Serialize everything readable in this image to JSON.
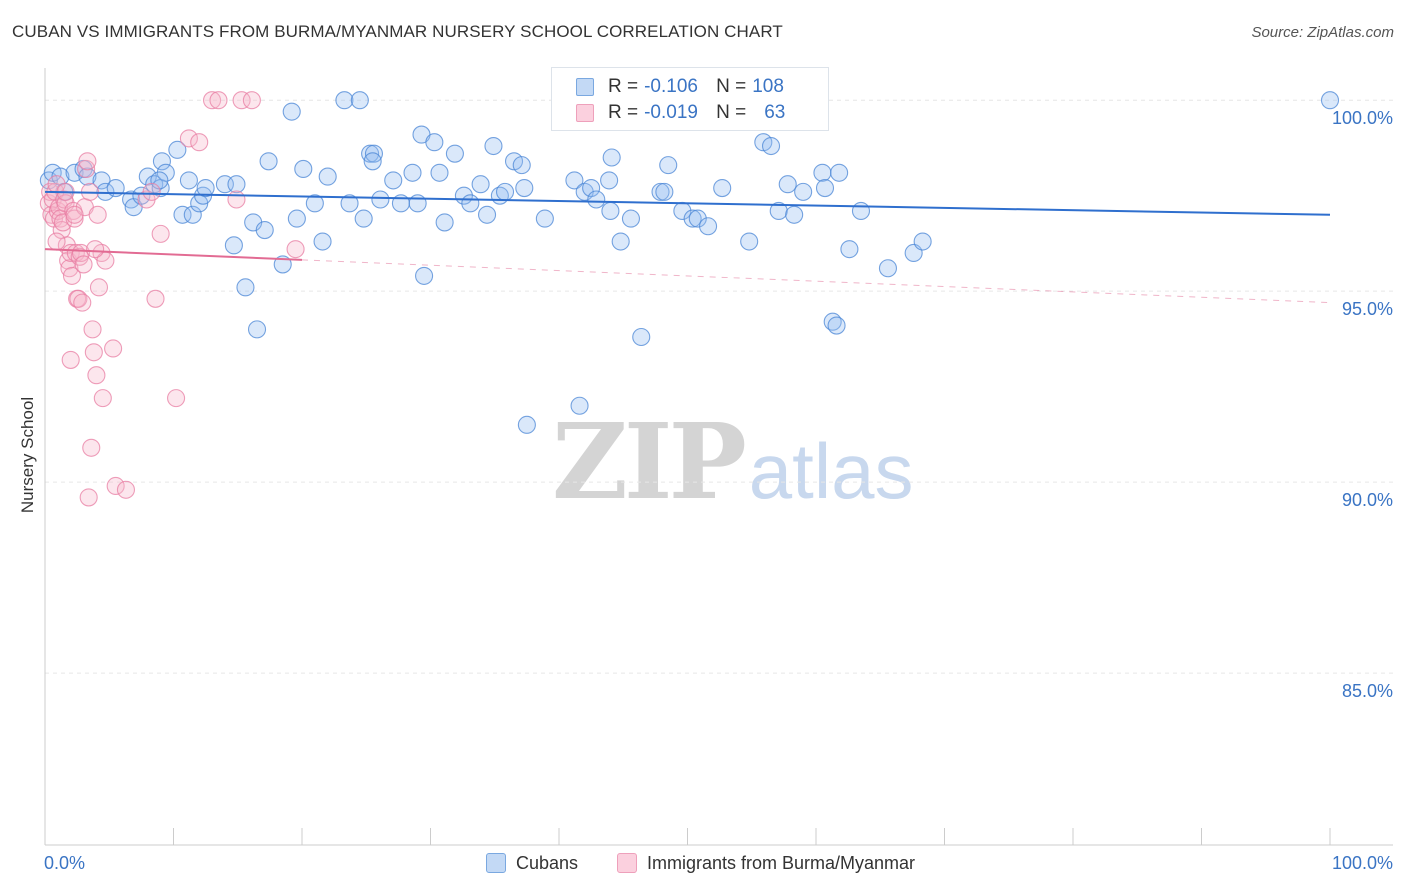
{
  "header": {
    "title": "CUBAN VS IMMIGRANTS FROM BURMA/MYANMAR NURSERY SCHOOL CORRELATION CHART",
    "source": "Source: ZipAtlas.com"
  },
  "watermark": {
    "zip": "ZIP",
    "atlas": "atlas"
  },
  "legend_box": {
    "rows": [
      {
        "r_label": "R =",
        "r_value": "-0.106",
        "n_label": "N =",
        "n_value": "108",
        "color": "#a8c8f0"
      },
      {
        "r_label": "R =",
        "r_value": "-0.019",
        "n_label": "N =",
        "n_value": "63",
        "color": "#f5b8cb"
      }
    ]
  },
  "bottom_legend": {
    "items": [
      {
        "label": "Cubans",
        "color": "#a8c8f0"
      },
      {
        "label": "Immigrants from Burma/Myanmar",
        "color": "#f5b8cb"
      }
    ]
  },
  "chart_data": {
    "type": "scatter",
    "title": "CUBAN VS IMMIGRANTS FROM BURMA/MYANMAR NURSERY SCHOOL CORRELATION CHART",
    "xlabel": "",
    "ylabel": "Nursery School",
    "xlim": [
      0,
      100
    ],
    "ylim": [
      80.5,
      101.0
    ],
    "x_tick_labels": [
      "0.0%",
      "100.0%"
    ],
    "y_ticks": [
      85,
      90,
      95,
      100
    ],
    "y_tick_labels": [
      "85.0%",
      "90.0%",
      "95.0%",
      "100.0%"
    ],
    "grid": true,
    "series": [
      {
        "name": "Cubans",
        "color": "#4a86d6",
        "fill": "rgba(150,190,240,0.35)",
        "trend": {
          "x": [
            0,
            100
          ],
          "y": [
            97.6,
            97.0
          ],
          "dashed_from": null,
          "color": "#2f6fce"
        },
        "points": [
          [
            0.3,
            97.9
          ],
          [
            0.6,
            98.1
          ],
          [
            1.2,
            98.0
          ],
          [
            1.5,
            97.6
          ],
          [
            2.3,
            98.1
          ],
          [
            3.0,
            98.2
          ],
          [
            3.3,
            98.0
          ],
          [
            4.4,
            97.9
          ],
          [
            4.7,
            97.6
          ],
          [
            5.5,
            97.7
          ],
          [
            6.7,
            97.4
          ],
          [
            6.9,
            97.2
          ],
          [
            7.5,
            97.5
          ],
          [
            8.0,
            98.0
          ],
          [
            8.5,
            97.8
          ],
          [
            9.0,
            97.7
          ],
          [
            9.1,
            98.4
          ],
          [
            9.4,
            98.1
          ],
          [
            10.3,
            98.7
          ],
          [
            10.7,
            97.0
          ],
          [
            11.2,
            97.9
          ],
          [
            11.5,
            97.0
          ],
          [
            12.0,
            97.3
          ],
          [
            12.3,
            97.5
          ],
          [
            12.5,
            97.7
          ],
          [
            14.0,
            97.8
          ],
          [
            14.7,
            96.2
          ],
          [
            15.6,
            95.1
          ],
          [
            16.2,
            96.8
          ],
          [
            16.5,
            94.0
          ],
          [
            17.1,
            96.6
          ],
          [
            17.4,
            98.4
          ],
          [
            18.5,
            95.7
          ],
          [
            19.2,
            99.7
          ],
          [
            19.6,
            96.9
          ],
          [
            20.1,
            98.2
          ],
          [
            21.0,
            97.3
          ],
          [
            21.6,
            96.3
          ],
          [
            22.0,
            98.0
          ],
          [
            23.3,
            100.0
          ],
          [
            23.7,
            97.3
          ],
          [
            24.5,
            100.0
          ],
          [
            24.8,
            96.9
          ],
          [
            25.3,
            98.6
          ],
          [
            25.6,
            98.6
          ],
          [
            26.1,
            97.4
          ],
          [
            27.1,
            97.9
          ],
          [
            27.7,
            97.3
          ],
          [
            28.6,
            98.1
          ],
          [
            29.0,
            97.3
          ],
          [
            29.3,
            99.1
          ],
          [
            29.5,
            95.4
          ],
          [
            30.3,
            98.9
          ],
          [
            31.1,
            96.8
          ],
          [
            31.9,
            98.6
          ],
          [
            32.6,
            97.5
          ],
          [
            33.1,
            97.3
          ],
          [
            33.9,
            97.8
          ],
          [
            34.4,
            97.0
          ],
          [
            34.9,
            98.8
          ],
          [
            35.4,
            97.5
          ],
          [
            35.8,
            97.6
          ],
          [
            36.5,
            98.4
          ],
          [
            37.1,
            98.3
          ],
          [
            37.5,
            91.5
          ],
          [
            38.9,
            96.9
          ],
          [
            41.2,
            97.9
          ],
          [
            41.6,
            92.0
          ],
          [
            42.0,
            97.6
          ],
          [
            42.5,
            97.7
          ],
          [
            42.9,
            97.4
          ],
          [
            43.9,
            97.9
          ],
          [
            44.1,
            98.5
          ],
          [
            44.8,
            96.3
          ],
          [
            45.6,
            96.9
          ],
          [
            46.4,
            93.8
          ],
          [
            47.9,
            97.6
          ],
          [
            48.2,
            97.6
          ],
          [
            48.5,
            98.3
          ],
          [
            49.6,
            97.1
          ],
          [
            50.4,
            96.9
          ],
          [
            50.8,
            96.9
          ],
          [
            51.6,
            96.7
          ],
          [
            52.7,
            97.7
          ],
          [
            54.8,
            96.3
          ],
          [
            55.9,
            98.9
          ],
          [
            56.5,
            98.8
          ],
          [
            57.1,
            97.1
          ],
          [
            57.8,
            97.8
          ],
          [
            58.3,
            97.0
          ],
          [
            59.0,
            97.6
          ],
          [
            60.5,
            98.1
          ],
          [
            60.7,
            97.7
          ],
          [
            61.3,
            94.2
          ],
          [
            61.8,
            98.1
          ],
          [
            62.6,
            96.1
          ],
          [
            63.5,
            97.1
          ],
          [
            65.6,
            95.6
          ],
          [
            67.6,
            96.0
          ],
          [
            68.3,
            96.3
          ],
          [
            37.3,
            97.7
          ],
          [
            44.0,
            97.1
          ],
          [
            30.7,
            98.1
          ],
          [
            14.9,
            97.8
          ],
          [
            8.9,
            97.9
          ],
          [
            100.0,
            100.0
          ],
          [
            61.6,
            94.1
          ],
          [
            25.5,
            98.4
          ]
        ]
      },
      {
        "name": "Immigrants from Burma/Myanmar",
        "color": "#e87ea3",
        "fill": "rgba(245,184,203,0.35)",
        "trend": {
          "x": [
            0,
            100
          ],
          "y": [
            96.1,
            94.7
          ],
          "dashed_from": 20,
          "color": "#e26b93"
        },
        "points": [
          [
            0.3,
            97.3
          ],
          [
            0.4,
            97.6
          ],
          [
            0.5,
            97.0
          ],
          [
            0.6,
            97.4
          ],
          [
            0.7,
            96.9
          ],
          [
            0.8,
            97.6
          ],
          [
            0.9,
            97.8
          ],
          [
            1.0,
            97.1
          ],
          [
            1.1,
            97.2
          ],
          [
            1.2,
            96.9
          ],
          [
            1.3,
            96.6
          ],
          [
            1.4,
            96.8
          ],
          [
            1.5,
            97.4
          ],
          [
            1.6,
            97.3
          ],
          [
            1.7,
            96.2
          ],
          [
            1.8,
            95.8
          ],
          [
            1.9,
            95.6
          ],
          [
            2.0,
            96.0
          ],
          [
            2.1,
            95.4
          ],
          [
            2.2,
            97.1
          ],
          [
            2.3,
            96.9
          ],
          [
            2.4,
            96.0
          ],
          [
            2.5,
            94.8
          ],
          [
            2.6,
            94.8
          ],
          [
            2.7,
            95.9
          ],
          [
            2.8,
            96.0
          ],
          [
            2.9,
            94.7
          ],
          [
            3.0,
            95.7
          ],
          [
            3.1,
            97.2
          ],
          [
            3.2,
            98.2
          ],
          [
            3.3,
            98.4
          ],
          [
            3.5,
            97.6
          ],
          [
            3.7,
            94.0
          ],
          [
            3.8,
            93.4
          ],
          [
            4.0,
            92.8
          ],
          [
            4.2,
            95.1
          ],
          [
            4.4,
            96.0
          ],
          [
            4.5,
            92.2
          ],
          [
            4.7,
            95.8
          ],
          [
            5.3,
            93.5
          ],
          [
            5.5,
            89.9
          ],
          [
            6.3,
            89.8
          ],
          [
            7.9,
            97.4
          ],
          [
            8.3,
            97.6
          ],
          [
            8.6,
            94.8
          ],
          [
            9.0,
            96.5
          ],
          [
            10.2,
            92.2
          ],
          [
            11.2,
            99.0
          ],
          [
            12.0,
            98.9
          ],
          [
            13.0,
            100.0
          ],
          [
            13.5,
            100.0
          ],
          [
            14.9,
            97.4
          ],
          [
            15.3,
            100.0
          ],
          [
            16.1,
            100.0
          ],
          [
            19.5,
            96.1
          ],
          [
            3.6,
            90.9
          ],
          [
            3.4,
            89.6
          ],
          [
            2.0,
            93.2
          ],
          [
            4.1,
            97.0
          ],
          [
            1.6,
            97.6
          ],
          [
            0.9,
            96.3
          ],
          [
            3.9,
            96.1
          ],
          [
            2.3,
            97.0
          ]
        ]
      }
    ]
  }
}
